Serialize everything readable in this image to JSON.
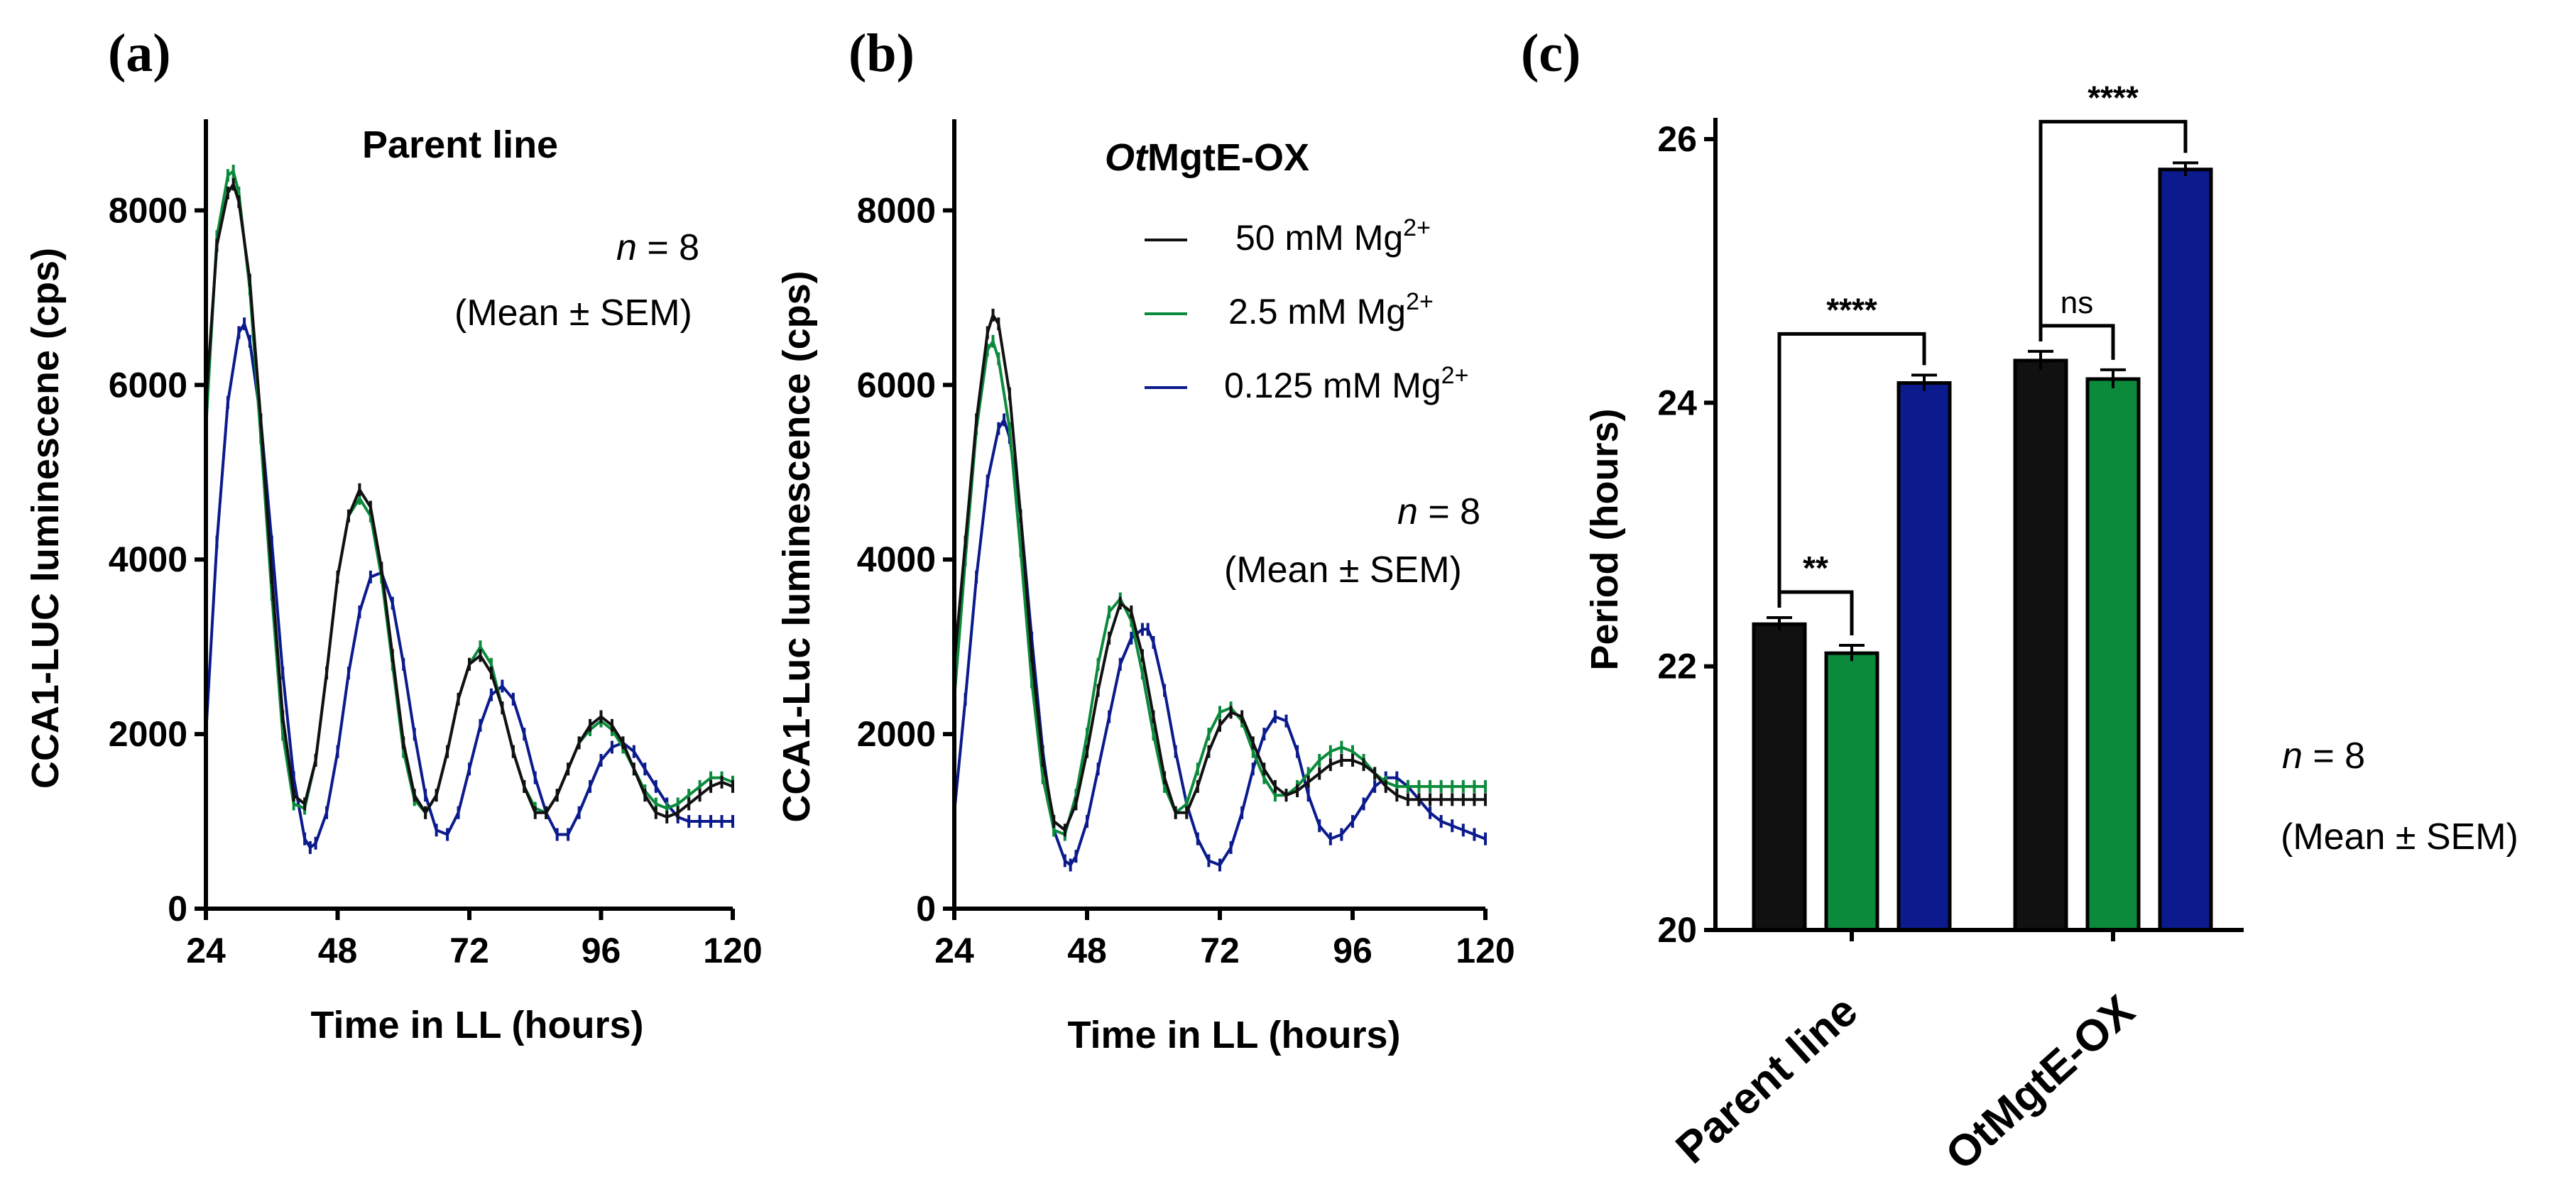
{
  "colors": {
    "black": "#111111",
    "green": "#0c8a3c",
    "blue": "#0b1a8c"
  },
  "panel_a": {
    "label": "(a)",
    "title": "Parent line",
    "note_n_italic": "n",
    "note_n_rest": " = 8",
    "note_mean": "(Mean ± SEM)"
  },
  "panel_b": {
    "label": "(b)",
    "title_italic": "Ot",
    "title_rest": "MgtE-OX",
    "note_n_italic": "n",
    "note_n_rest": " = 8",
    "note_mean": "(Mean ± SEM)",
    "legend": [
      {
        "text": "50 mM Mg",
        "sup": "2+",
        "color_key": "black"
      },
      {
        "text": "2.5 mM Mg",
        "sup": "2+",
        "color_key": "green"
      },
      {
        "text": "0.125 mM Mg",
        "sup": "2+",
        "color_key": "blue"
      }
    ]
  },
  "panel_c": {
    "label": "(c)",
    "note_n_italic": "n",
    "note_n_rest": " = 8",
    "note_mean": "(Mean ± SEM)"
  },
  "chart_data": [
    {
      "id": "a",
      "type": "line",
      "title": "Parent line",
      "xlabel": "Time in LL (hours)",
      "ylabel": "CCA1-LUC luminescene  (cps)",
      "xlim": [
        24,
        120
      ],
      "ylim": [
        0,
        8800
      ],
      "xticks": [
        24,
        48,
        72,
        96,
        120
      ],
      "yticks": [
        0,
        2000,
        4000,
        6000,
        8000
      ],
      "series": [
        {
          "name": "50 mM Mg2+",
          "color_key": "black",
          "x": [
            24,
            26,
            28,
            29,
            30,
            32,
            34,
            36,
            38,
            40,
            42,
            44,
            46,
            48,
            50,
            52,
            54,
            56,
            58,
            60,
            62,
            64,
            66,
            68,
            70,
            72,
            74,
            76,
            78,
            80,
            82,
            84,
            86,
            88,
            90,
            92,
            94,
            96,
            98,
            100,
            102,
            104,
            106,
            108,
            110,
            112,
            114,
            116,
            118,
            120
          ],
          "y": [
            5800,
            7600,
            8200,
            8300,
            8100,
            7200,
            5600,
            3800,
            2200,
            1300,
            1200,
            1700,
            2700,
            3800,
            4500,
            4800,
            4600,
            3900,
            2900,
            1900,
            1300,
            1100,
            1300,
            1800,
            2400,
            2800,
            2900,
            2700,
            2300,
            1800,
            1400,
            1100,
            1100,
            1300,
            1600,
            1900,
            2100,
            2200,
            2100,
            1900,
            1600,
            1300,
            1100,
            1050,
            1100,
            1200,
            1300,
            1400,
            1450,
            1400
          ]
        },
        {
          "name": "2.5 mM Mg2+",
          "color_key": "green",
          "x": [
            24,
            26,
            28,
            29,
            30,
            32,
            34,
            36,
            38,
            40,
            42,
            44,
            46,
            48,
            50,
            52,
            54,
            56,
            58,
            60,
            62,
            64,
            66,
            68,
            70,
            72,
            74,
            76,
            78,
            80,
            82,
            84,
            86,
            88,
            90,
            92,
            94,
            96,
            98,
            100,
            102,
            104,
            106,
            108,
            110,
            112,
            114,
            116,
            118,
            120
          ],
          "y": [
            5500,
            7700,
            8400,
            8450,
            8200,
            7100,
            5400,
            3600,
            2000,
            1200,
            1150,
            1700,
            2700,
            3800,
            4500,
            4700,
            4500,
            3800,
            2800,
            1800,
            1250,
            1100,
            1300,
            1800,
            2400,
            2800,
            3000,
            2800,
            2300,
            1800,
            1400,
            1150,
            1100,
            1300,
            1600,
            1900,
            2050,
            2150,
            2050,
            1850,
            1600,
            1350,
            1200,
            1150,
            1200,
            1300,
            1400,
            1500,
            1500,
            1450
          ]
        },
        {
          "name": "0.125 mM Mg2+",
          "color_key": "blue",
          "x": [
            24,
            26,
            28,
            30,
            31,
            32,
            34,
            36,
            38,
            40,
            42,
            43,
            44,
            46,
            48,
            50,
            52,
            54,
            56,
            58,
            60,
            62,
            64,
            66,
            68,
            70,
            72,
            74,
            76,
            78,
            80,
            82,
            84,
            86,
            88,
            90,
            92,
            94,
            96,
            98,
            100,
            102,
            104,
            106,
            108,
            110,
            112,
            114,
            116,
            118,
            120
          ],
          "y": [
            2000,
            4200,
            5800,
            6600,
            6700,
            6500,
            5600,
            4200,
            2700,
            1500,
            800,
            700,
            750,
            1100,
            1800,
            2700,
            3400,
            3800,
            3850,
            3500,
            2800,
            2000,
            1300,
            900,
            850,
            1100,
            1600,
            2100,
            2450,
            2550,
            2400,
            2000,
            1500,
            1100,
            850,
            850,
            1100,
            1400,
            1700,
            1850,
            1900,
            1800,
            1600,
            1400,
            1200,
            1050,
            1000,
            1000,
            1000,
            1000,
            1000
          ]
        }
      ]
    },
    {
      "id": "b",
      "type": "line",
      "title": "OtMgtE-OX",
      "xlabel": "Time in LL (hours)",
      "ylabel": "CCA1-Luc luminescence (cps)",
      "xlim": [
        24,
        120
      ],
      "ylim": [
        0,
        8800
      ],
      "xticks": [
        24,
        48,
        72,
        96,
        120
      ],
      "yticks": [
        0,
        2000,
        4000,
        6000,
        8000
      ],
      "series": [
        {
          "name": "50 mM Mg2+",
          "color_key": "black",
          "x": [
            24,
            26,
            28,
            30,
            31,
            32,
            34,
            36,
            38,
            40,
            42,
            44,
            46,
            48,
            50,
            52,
            54,
            56,
            58,
            60,
            62,
            64,
            66,
            68,
            70,
            72,
            74,
            76,
            78,
            80,
            82,
            84,
            86,
            88,
            90,
            92,
            94,
            96,
            98,
            100,
            102,
            104,
            106,
            108,
            110,
            112,
            114,
            116,
            118,
            120
          ],
          "y": [
            2800,
            4200,
            5600,
            6600,
            6800,
            6700,
            5900,
            4500,
            2900,
            1700,
            1000,
            900,
            1200,
            1800,
            2500,
            3100,
            3500,
            3400,
            2900,
            2200,
            1500,
            1100,
            1100,
            1400,
            1800,
            2100,
            2250,
            2200,
            1900,
            1600,
            1400,
            1300,
            1350,
            1450,
            1550,
            1650,
            1700,
            1700,
            1650,
            1550,
            1400,
            1300,
            1250,
            1250,
            1250,
            1250,
            1250,
            1250,
            1250,
            1250
          ]
        },
        {
          "name": "2.5 mM Mg2+",
          "color_key": "green",
          "x": [
            24,
            26,
            28,
            30,
            31,
            32,
            34,
            36,
            38,
            40,
            42,
            44,
            46,
            48,
            50,
            52,
            54,
            56,
            58,
            60,
            62,
            64,
            66,
            68,
            70,
            72,
            74,
            76,
            78,
            80,
            82,
            84,
            86,
            88,
            90,
            92,
            94,
            96,
            98,
            100,
            102,
            104,
            106,
            108,
            110,
            112,
            114,
            116,
            118,
            120
          ],
          "y": [
            2400,
            4000,
            5500,
            6400,
            6500,
            6300,
            5500,
            4100,
            2600,
            1500,
            900,
            850,
            1300,
            2000,
            2800,
            3400,
            3550,
            3300,
            2700,
            2000,
            1400,
            1100,
            1200,
            1600,
            2000,
            2250,
            2300,
            2150,
            1800,
            1500,
            1300,
            1300,
            1400,
            1550,
            1700,
            1800,
            1850,
            1800,
            1700,
            1550,
            1450,
            1400,
            1400,
            1400,
            1400,
            1400,
            1400,
            1400,
            1400,
            1400
          ]
        },
        {
          "name": "0.125 mM Mg2+",
          "color_key": "blue",
          "x": [
            24,
            26,
            28,
            30,
            32,
            33,
            34,
            36,
            38,
            40,
            42,
            44,
            45,
            46,
            48,
            50,
            52,
            54,
            56,
            58,
            59,
            60,
            62,
            64,
            66,
            68,
            70,
            72,
            74,
            76,
            78,
            80,
            82,
            84,
            86,
            88,
            90,
            92,
            94,
            96,
            98,
            100,
            102,
            104,
            106,
            108,
            110,
            112,
            114,
            116,
            118,
            120
          ],
          "y": [
            1100,
            2400,
            3800,
            4900,
            5500,
            5600,
            5400,
            4500,
            3100,
            1800,
            900,
            550,
            500,
            600,
            1000,
            1600,
            2200,
            2800,
            3100,
            3200,
            3200,
            3050,
            2500,
            1800,
            1200,
            800,
            550,
            500,
            700,
            1100,
            1600,
            2000,
            2200,
            2150,
            1800,
            1300,
            950,
            800,
            850,
            1000,
            1200,
            1400,
            1500,
            1500,
            1400,
            1250,
            1100,
            1000,
            950,
            900,
            850,
            800
          ]
        }
      ]
    },
    {
      "id": "c",
      "type": "bar",
      "ylabel": "Period (hours)",
      "ylim": [
        20,
        26
      ],
      "yticks": [
        20,
        22,
        24,
        26
      ],
      "categories": [
        "Parent line",
        "OtMgtE-OX"
      ],
      "series": [
        {
          "name": "50 mM Mg2+",
          "color_key": "black",
          "values": [
            22.32,
            24.32
          ],
          "sem": [
            0.05,
            0.07
          ]
        },
        {
          "name": "2.5 mM Mg2+",
          "color_key": "green",
          "values": [
            22.1,
            24.18
          ],
          "sem": [
            0.06,
            0.07
          ]
        },
        {
          "name": "0.125 mM Mg2+",
          "color_key": "blue",
          "values": [
            24.15,
            25.77
          ],
          "sem": [
            0.06,
            0.05
          ]
        }
      ],
      "significance": [
        {
          "group": 0,
          "from": 0,
          "to": 1,
          "label": "**"
        },
        {
          "group": 0,
          "from": 0,
          "to": 2,
          "label": "****"
        },
        {
          "group": 1,
          "from": 0,
          "to": 1,
          "label": "ns"
        },
        {
          "group": 1,
          "from": 0,
          "to": 2,
          "label": "****"
        }
      ]
    }
  ]
}
